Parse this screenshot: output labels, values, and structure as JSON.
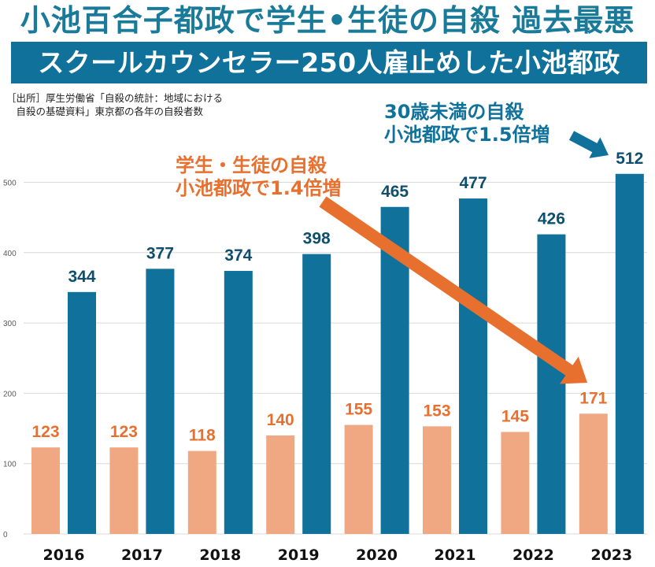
{
  "header": {
    "headline": "小池百合子都政で学生•生徒の自殺 過去最悪",
    "banner": "スクールカウンセラー250人雇止めした小池都政"
  },
  "source": {
    "line1": "［出所］厚生労働省「自殺の統計：地域における",
    "line2": "　自殺の基礎資料」東京都の各年の自殺者数"
  },
  "annotations": {
    "students": {
      "line1": "学生・生徒の自殺",
      "line2": "小池都政で1.4倍増",
      "color": "#e8702f"
    },
    "under30": {
      "line1": "30歳未満の自殺",
      "line2": "小池都政で1.5倍増",
      "color": "#10719b"
    }
  },
  "chart_data": {
    "type": "bar",
    "title": "東京都の各年の自殺者数",
    "xlabel": "",
    "ylabel": "",
    "categories": [
      "2016",
      "2017",
      "2018",
      "2019",
      "2020",
      "2021",
      "2022",
      "2023"
    ],
    "series": [
      {
        "name": "学生・生徒の自殺",
        "color": "#f0a882",
        "label_color": "#e8702f",
        "values": [
          123,
          123,
          118,
          140,
          155,
          153,
          145,
          171
        ]
      },
      {
        "name": "30歳未満の自殺",
        "color": "#10719b",
        "label_color": "#0f4f6e",
        "values": [
          344,
          377,
          374,
          398,
          465,
          477,
          426,
          512
        ]
      }
    ],
    "ylim": [
      0,
      550
    ],
    "yticks": [
      0,
      100,
      200,
      300,
      400,
      500
    ],
    "grid": true,
    "legend": "none",
    "arrows": [
      {
        "series": "学生・生徒の自殺",
        "color": "#e8702f",
        "direction": "down-right"
      },
      {
        "series": "30歳未満の自殺",
        "color": "#10719b",
        "direction": "right"
      }
    ]
  }
}
